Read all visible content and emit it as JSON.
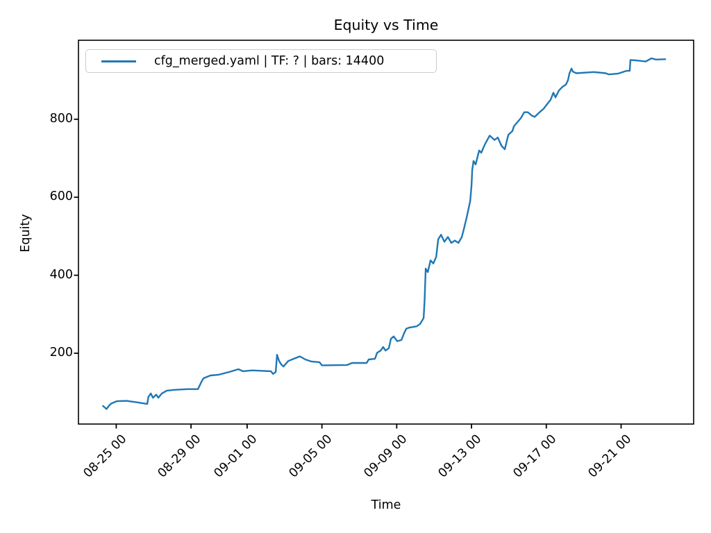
{
  "figure": {
    "title": "Equity vs Time",
    "xlabel": "Time",
    "ylabel": "Equity",
    "background_color": "#ffffff",
    "spine_color": "#000000"
  },
  "legend": {
    "label": "cfg_merged.yaml | TF: ? | bars: 14400",
    "position": "upper left",
    "line_color": "#1f77b4"
  },
  "chart_data": {
    "type": "line",
    "title": "Equity vs Time",
    "xlabel": "Time",
    "ylabel": "Equity",
    "grid": false,
    "legend_position": "upper left",
    "x_unit": "days relative to 08-25 00:00",
    "xlim": [
      -2.02,
      30.88
    ],
    "ylim": [
      18.5,
      1002.5
    ],
    "y_ticks": [
      200,
      400,
      600,
      800
    ],
    "x_ticks": [
      {
        "pos": 0,
        "label": "08-25 00"
      },
      {
        "pos": 4,
        "label": "08-29 00"
      },
      {
        "pos": 7,
        "label": "09-01 00"
      },
      {
        "pos": 11,
        "label": "09-05 00"
      },
      {
        "pos": 15,
        "label": "09-09 00"
      },
      {
        "pos": 19,
        "label": "09-13 00"
      },
      {
        "pos": 23,
        "label": "09-17 00"
      },
      {
        "pos": 27,
        "label": "09-21 00"
      }
    ],
    "series": [
      {
        "name": "cfg_merged.yaml | TF: ? | bars: 14400",
        "color": "#1f77b4",
        "line_width": 2.4,
        "points": [
          [
            -0.71,
            65
          ],
          [
            -0.52,
            57
          ],
          [
            -0.38,
            66
          ],
          [
            -0.27,
            71
          ],
          [
            0.03,
            77
          ],
          [
            0.55,
            78
          ],
          [
            1.14,
            74
          ],
          [
            1.66,
            70
          ],
          [
            1.72,
            88
          ],
          [
            1.85,
            97
          ],
          [
            1.96,
            86
          ],
          [
            2.14,
            94
          ],
          [
            2.25,
            86
          ],
          [
            2.44,
            97
          ],
          [
            2.7,
            104
          ],
          [
            3.07,
            106
          ],
          [
            3.81,
            108
          ],
          [
            4.37,
            108
          ],
          [
            4.56,
            127
          ],
          [
            4.67,
            136
          ],
          [
            5.04,
            143
          ],
          [
            5.48,
            145
          ],
          [
            6.04,
            152
          ],
          [
            6.53,
            159
          ],
          [
            6.78,
            154
          ],
          [
            7.27,
            156
          ],
          [
            8.27,
            154
          ],
          [
            8.39,
            147
          ],
          [
            8.53,
            152
          ],
          [
            8.6,
            196
          ],
          [
            8.71,
            180
          ],
          [
            8.83,
            171
          ],
          [
            8.94,
            166
          ],
          [
            9.2,
            180
          ],
          [
            9.5,
            186
          ],
          [
            9.82,
            192
          ],
          [
            10.12,
            184
          ],
          [
            10.42,
            179
          ],
          [
            10.87,
            177
          ],
          [
            11.0,
            169
          ],
          [
            12.35,
            170
          ],
          [
            12.61,
            175
          ],
          [
            13.39,
            175
          ],
          [
            13.5,
            184
          ],
          [
            13.84,
            186
          ],
          [
            13.95,
            201
          ],
          [
            14.14,
            207
          ],
          [
            14.28,
            216
          ],
          [
            14.4,
            207
          ],
          [
            14.58,
            213
          ],
          [
            14.69,
            237
          ],
          [
            14.84,
            243
          ],
          [
            15.03,
            231
          ],
          [
            15.25,
            234
          ],
          [
            15.4,
            252
          ],
          [
            15.51,
            263
          ],
          [
            15.69,
            266
          ],
          [
            16.07,
            269
          ],
          [
            16.25,
            275
          ],
          [
            16.44,
            290
          ],
          [
            16.49,
            335
          ],
          [
            16.55,
            417
          ],
          [
            16.66,
            408
          ],
          [
            16.81,
            438
          ],
          [
            16.96,
            430
          ],
          [
            17.11,
            447
          ],
          [
            17.22,
            492
          ],
          [
            17.37,
            504
          ],
          [
            17.55,
            486
          ],
          [
            17.74,
            498
          ],
          [
            17.92,
            483
          ],
          [
            18.11,
            489
          ],
          [
            18.3,
            483
          ],
          [
            18.48,
            498
          ],
          [
            18.59,
            518
          ],
          [
            18.74,
            548
          ],
          [
            18.85,
            572
          ],
          [
            18.93,
            590
          ],
          [
            19.0,
            630
          ],
          [
            19.04,
            670
          ],
          [
            19.11,
            693
          ],
          [
            19.22,
            684
          ],
          [
            19.41,
            720
          ],
          [
            19.52,
            714
          ],
          [
            19.71,
            735
          ],
          [
            19.97,
            758
          ],
          [
            20.23,
            747
          ],
          [
            20.41,
            753
          ],
          [
            20.6,
            732
          ],
          [
            20.78,
            723
          ],
          [
            20.97,
            760
          ],
          [
            21.19,
            770
          ],
          [
            21.27,
            782
          ],
          [
            21.64,
            803
          ],
          [
            21.82,
            818
          ],
          [
            22.01,
            818
          ],
          [
            22.23,
            809
          ],
          [
            22.38,
            806
          ],
          [
            22.64,
            818
          ],
          [
            22.86,
            827
          ],
          [
            23.05,
            839
          ],
          [
            23.23,
            850
          ],
          [
            23.38,
            868
          ],
          [
            23.49,
            856
          ],
          [
            23.68,
            874
          ],
          [
            23.86,
            883
          ],
          [
            24.05,
            889
          ],
          [
            24.16,
            900
          ],
          [
            24.24,
            918
          ],
          [
            24.35,
            930
          ],
          [
            24.42,
            922
          ],
          [
            24.61,
            918
          ],
          [
            25.54,
            921
          ],
          [
            26.17,
            918
          ],
          [
            26.35,
            915
          ],
          [
            26.83,
            917
          ],
          [
            27.28,
            924
          ],
          [
            27.46,
            924
          ],
          [
            27.5,
            952
          ],
          [
            27.76,
            951
          ],
          [
            28.32,
            948
          ],
          [
            28.62,
            956
          ],
          [
            28.88,
            953
          ],
          [
            29.36,
            954
          ]
        ]
      }
    ]
  }
}
